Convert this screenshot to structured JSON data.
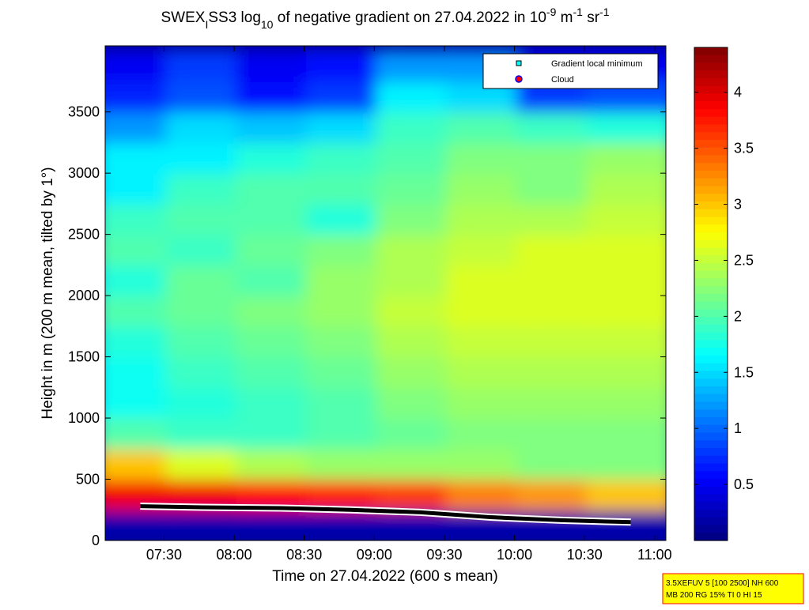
{
  "chart_data": {
    "type": "heatmap",
    "title_parts": [
      {
        "text": "SWEX"
      },
      {
        "text": "I",
        "shift": "sub"
      },
      {
        "text": "SS3 log"
      },
      {
        "text": "10",
        "shift": "sub"
      },
      {
        "text": " of negative gradient on 27.04.2022 in 10"
      },
      {
        "text": "-9",
        "shift": "sup"
      },
      {
        "text": " m"
      },
      {
        "text": "-1",
        "shift": "sup"
      },
      {
        "text": " sr"
      },
      {
        "text": "-1",
        "shift": "sup"
      }
    ],
    "x_label": "Time on 27.04.2022 (600 s mean)",
    "y_label": "Height in m (200 m mean, tilted by 1°)",
    "x": [
      7.33,
      7.83,
      8.33,
      8.83,
      9.33,
      9.83,
      10.33,
      10.83
    ],
    "y": [
      125,
      375,
      625,
      875,
      1125,
      1375,
      1625,
      1875,
      2125,
      2375,
      2625,
      2875,
      3125,
      3375,
      3625,
      3875
    ],
    "z": [
      [
        0.2,
        0.2,
        0.2,
        0.2,
        0.2,
        0.2,
        0.2,
        0.2
      ],
      [
        3.9,
        3.9,
        3.8,
        3.7,
        3.6,
        3.3,
        3.2,
        3.0
      ],
      [
        3.0,
        2.6,
        2.4,
        2.3,
        2.3,
        2.3,
        2.2,
        2.2
      ],
      [
        2.0,
        1.9,
        1.9,
        2.0,
        2.1,
        2.2,
        2.2,
        2.2
      ],
      [
        1.7,
        1.8,
        1.9,
        2.0,
        2.2,
        2.3,
        2.3,
        2.3
      ],
      [
        1.7,
        1.9,
        2.0,
        2.1,
        2.3,
        2.4,
        2.4,
        2.4
      ],
      [
        1.8,
        2.0,
        2.1,
        2.2,
        2.4,
        2.5,
        2.5,
        2.5
      ],
      [
        2.0,
        2.1,
        2.2,
        2.3,
        2.5,
        2.6,
        2.6,
        2.6
      ],
      [
        1.8,
        2.1,
        2.0,
        2.3,
        2.4,
        2.6,
        2.6,
        2.6
      ],
      [
        2.0,
        1.9,
        2.1,
        2.2,
        2.4,
        2.5,
        2.6,
        2.6
      ],
      [
        1.9,
        2.0,
        2.0,
        1.8,
        2.2,
        2.4,
        2.4,
        2.5
      ],
      [
        1.6,
        1.9,
        2.0,
        2.0,
        2.1,
        2.3,
        2.2,
        2.4
      ],
      [
        1.6,
        1.6,
        1.8,
        1.9,
        2.0,
        2.2,
        2.2,
        2.3
      ],
      [
        1.2,
        1.5,
        1.4,
        1.5,
        1.9,
        2.0,
        1.9,
        1.8
      ],
      [
        0.7,
        0.9,
        0.6,
        0.8,
        1.6,
        1.5,
        0.8,
        0.9
      ],
      [
        0.5,
        0.8,
        0.5,
        0.6,
        1.2,
        1.2,
        0.5,
        0.5
      ]
    ],
    "xlim": [
      7.08,
      11.08
    ],
    "ylim": [
      0,
      4040
    ],
    "xticks": [
      {
        "value": 7.5,
        "label": "07:30"
      },
      {
        "value": 8,
        "label": "08:00"
      },
      {
        "value": 8.5,
        "label": "08:30"
      },
      {
        "value": 9,
        "label": "09:00"
      },
      {
        "value": 9.5,
        "label": "09:30"
      },
      {
        "value": 10,
        "label": "10:00"
      },
      {
        "value": 10.5,
        "label": "10:30"
      },
      {
        "value": 11,
        "label": "11:00"
      }
    ],
    "yticks": [
      0,
      500,
      1000,
      1500,
      2000,
      2500,
      3000,
      3500
    ],
    "clim": [
      0,
      4.4
    ],
    "cticks": [
      0.5,
      1,
      1.5,
      2,
      2.5,
      3,
      3.5,
      4
    ],
    "colormap": "jet",
    "series": [
      {
        "name": "Gradient local minimum",
        "color": "#00ffff",
        "marker": "square",
        "values": [
          280,
          270,
          265,
          250,
          230,
          190,
          165,
          150
        ]
      },
      {
        "name": "Cloud",
        "color": "#ff0000",
        "marker": "circle",
        "values": [
          null,
          null,
          null,
          null,
          null,
          null,
          null,
          null
        ]
      }
    ],
    "legend": "top-right",
    "note_lines": [
      "3.5XEFUV 5 [100 2500] NH 600",
      "MB 200 RG 15% TI 0 HI 15"
    ]
  }
}
